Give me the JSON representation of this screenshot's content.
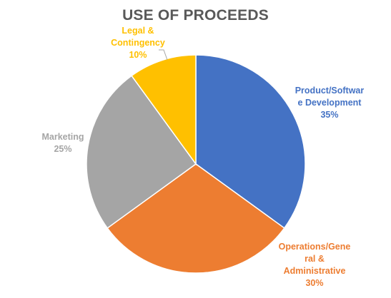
{
  "chart_data": {
    "type": "pie",
    "title": "USE OF PROCEEDS",
    "slices": [
      {
        "label_lines": [
          "Product/Softwar",
          "e Development"
        ],
        "value_text": "35%",
        "value": 35,
        "color": "#4472C4"
      },
      {
        "label_lines": [
          "Operations/Gene",
          "ral &",
          "Administrative"
        ],
        "value_text": "30%",
        "value": 30,
        "color": "#ED7D31"
      },
      {
        "label_lines": [
          "Marketing"
        ],
        "value_text": "25%",
        "value": 25,
        "color": "#A5A5A5"
      },
      {
        "label_lines": [
          "Legal &",
          "Contingency"
        ],
        "value_text": "10%",
        "value": 10,
        "color": "#FFC000"
      }
    ],
    "start_angle_deg": 0,
    "direction": "clockwise",
    "legend": "none"
  }
}
